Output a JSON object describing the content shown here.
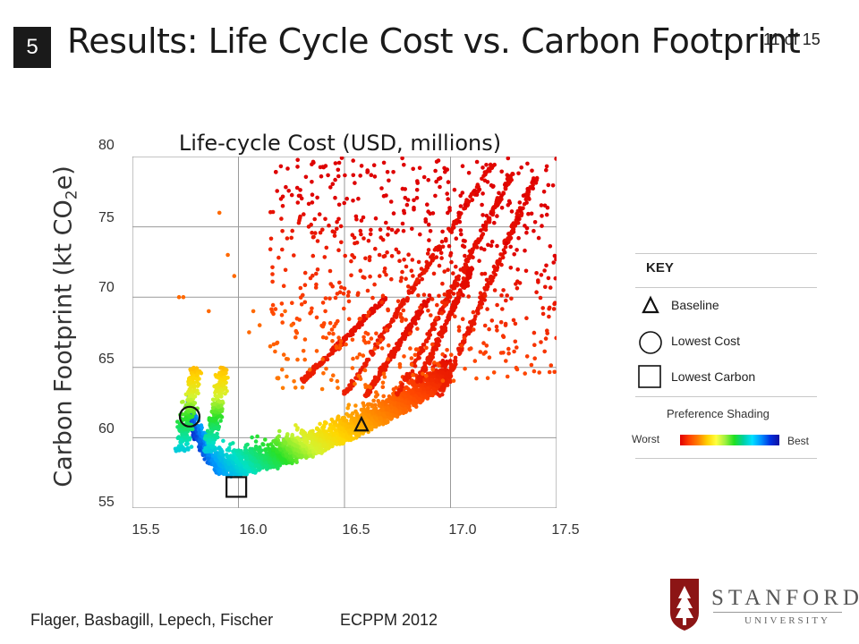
{
  "slide": {
    "section_number": "5",
    "title": "Results: Life Cycle Cost vs. Carbon Footprint",
    "page_indicator": "11 of 15"
  },
  "chart_data": {
    "type": "scatter",
    "title": "",
    "xlabel": "Life-cycle Cost (USD, millions)",
    "ylabel": "Carbon Footprint (kt CO",
    "ylabel_sub": "2",
    "ylabel_tail": "e)",
    "x_ticks": [
      "15.5",
      "16.0",
      "16.5",
      "17.0",
      "17.5"
    ],
    "y_ticks": [
      "80",
      "75",
      "70",
      "65",
      "60",
      "55"
    ],
    "xlim": [
      15.5,
      17.5
    ],
    "ylim": [
      55,
      80
    ],
    "grid": true,
    "series_description": "Design alternatives colored by preference shading (red = worst, blue = best)",
    "markers": {
      "baseline": {
        "x": 16.58,
        "y": 60.9
      },
      "lowest_cost": {
        "x": 15.77,
        "y": 61.5
      },
      "lowest_carbon": {
        "x": 15.99,
        "y": 56.5
      }
    }
  },
  "key": {
    "title": "KEY",
    "items": [
      {
        "symbol": "triangle-icon",
        "label": "Baseline"
      },
      {
        "symbol": "circle-icon",
        "label": "Lowest Cost"
      },
      {
        "symbol": "square-icon",
        "label": "Lowest Carbon"
      }
    ],
    "shading_title": "Preference Shading",
    "worst_label": "Worst",
    "best_label": "Best",
    "gradient_colors": [
      "#e00000",
      "#ff8000",
      "#ffff40",
      "#20e020",
      "#00e0ff",
      "#0030e0"
    ]
  },
  "footer": {
    "authors": "Flager, Basbagill, Lepech, Fischer",
    "venue": "ECPPM 2012"
  },
  "logo": {
    "wordmark": "STANFORD",
    "subtitle": "UNIVERSITY",
    "brand_color": "#8c1515"
  }
}
